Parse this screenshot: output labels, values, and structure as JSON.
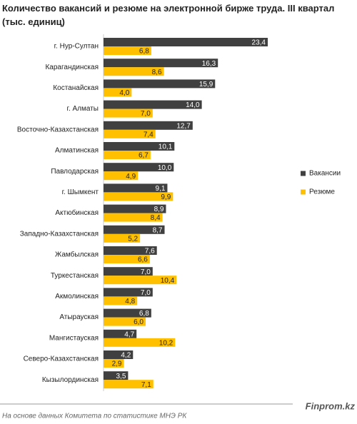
{
  "chart_data": {
    "type": "hbar-grouped",
    "title": "Количество вакансий и резюме на электронной бирже труда. III квартал (тыс. единиц)",
    "categories": [
      "г. Нур-Султан",
      "Карагандинская",
      "Костанайская",
      "г. Алматы",
      "Восточно-Казахстанская",
      "Алматинская",
      "Павлодарская",
      "г. Шымкент",
      "Актюбинская",
      "Западно-Казахстанская",
      "Жамбылская",
      "Туркестанская",
      "Акмолинская",
      "Атырауская",
      "Мангистауская",
      "Северо-Казахстанская",
      "Кызылординская"
    ],
    "series": [
      {
        "name": "Вакансии",
        "color": "#404040",
        "label_color": "#ffffff",
        "values": [
          23.4,
          16.3,
          15.9,
          14.0,
          12.7,
          10.1,
          10.0,
          9.1,
          8.9,
          8.7,
          7.6,
          7.0,
          7.0,
          6.8,
          4.7,
          4.2,
          3.5
        ],
        "value_labels": [
          "23,4",
          "16,3",
          "15,9",
          "14,0",
          "12,7",
          "10,1",
          "10,0",
          "9,1",
          "8,9",
          "8,7",
          "7,6",
          "7,0",
          "7,0",
          "6,8",
          "4,7",
          "4,2",
          "3,5"
        ]
      },
      {
        "name": "Резюме",
        "color": "#ffc000",
        "label_color": "#222222",
        "values": [
          6.8,
          8.6,
          4.0,
          7.0,
          7.4,
          6.7,
          4.9,
          9.9,
          8.4,
          5.2,
          6.6,
          10.4,
          4.8,
          6.0,
          10.2,
          2.9,
          7.1
        ],
        "value_labels": [
          "6,8",
          "8,6",
          "4,0",
          "7,0",
          "7,4",
          "6,7",
          "4,9",
          "9,9",
          "8,4",
          "5,2",
          "6,6",
          "10,4",
          "4,8",
          "6,0",
          "10,2",
          "2,9",
          "7,1"
        ]
      }
    ],
    "legend": "right",
    "source": "На основе данных Комитета по статистике МНЭ РК",
    "brand": "Finprom.kz"
  }
}
